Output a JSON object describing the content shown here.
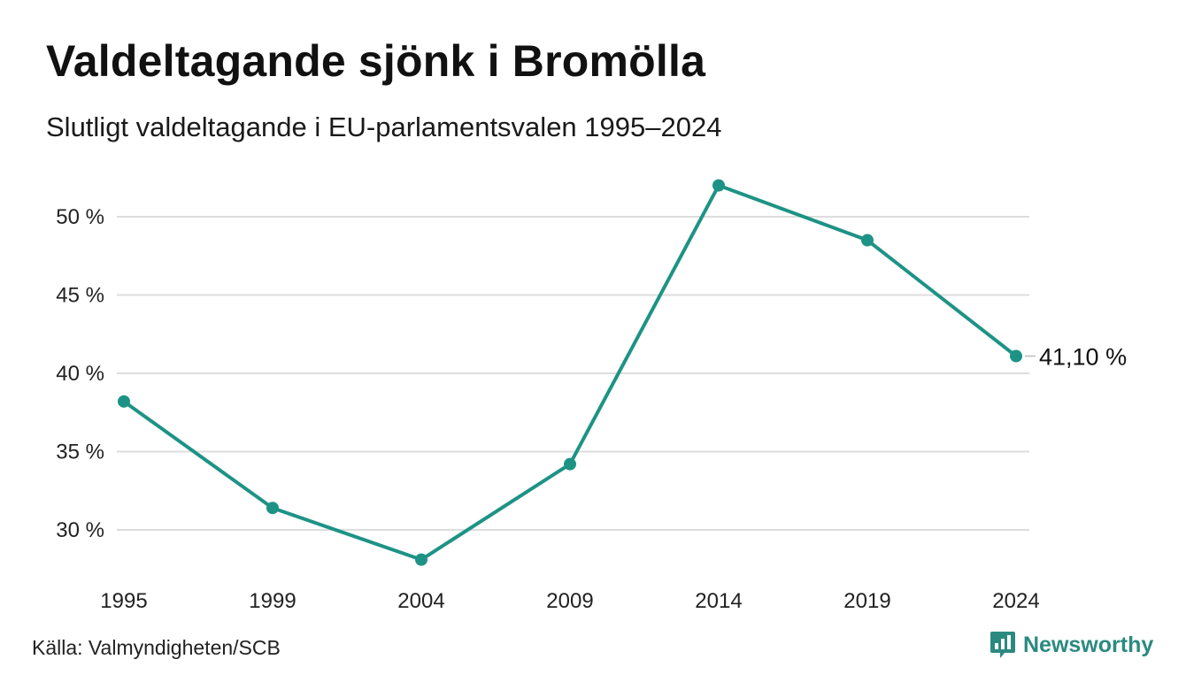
{
  "header": {
    "title": "Valdeltagande sjönk i Bromölla",
    "subtitle": "Slutligt valdeltagande i EU-parlamentsvalen 1995–2024"
  },
  "footer": {
    "source": "Källa: Valmyndigheten/SCB",
    "brand": "Newsworthy",
    "brand_icon": "newsworthy-logo-icon"
  },
  "colors": {
    "line": "#1d9385",
    "grid": "#dddddd",
    "brand": "#2b8a80"
  },
  "chart_data": {
    "type": "line",
    "title": "Valdeltagande sjönk i Bromölla",
    "subtitle": "Slutligt valdeltagande i EU-parlamentsvalen 1995–2024",
    "x": [
      1995,
      1999,
      2004,
      2009,
      2014,
      2019,
      2024
    ],
    "x_tick_labels": [
      "1995",
      "1999",
      "2004",
      "2009",
      "2014",
      "2019",
      "2024"
    ],
    "y": [
      38.2,
      31.4,
      28.1,
      34.2,
      52.0,
      48.5,
      41.1
    ],
    "y_ticks": [
      30,
      35,
      40,
      45,
      50
    ],
    "y_tick_labels": [
      "30 %",
      "35 %",
      "40 %",
      "45 %",
      "50 %"
    ],
    "ylim": [
      27,
      52.5
    ],
    "grid": true,
    "end_label": "41,10 %",
    "xlabel": "",
    "ylabel": ""
  }
}
